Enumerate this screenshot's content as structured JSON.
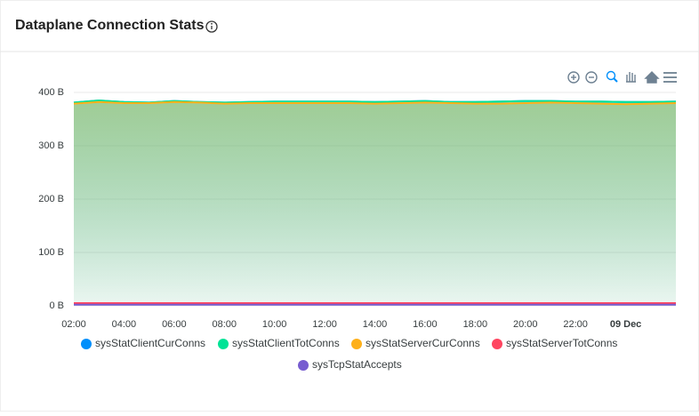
{
  "header": {
    "title": "Dataplane Connection Stats"
  },
  "chart_data": {
    "type": "area",
    "x": [
      2,
      3,
      4,
      5,
      6,
      7,
      8,
      9,
      10,
      11,
      12,
      13,
      14,
      15,
      16,
      17,
      18,
      19,
      20,
      21,
      22,
      23,
      24,
      25,
      26
    ],
    "xlim": [
      2,
      26
    ],
    "xticks": [
      {
        "value": 2,
        "label": "02:00"
      },
      {
        "value": 4,
        "label": "04:00"
      },
      {
        "value": 6,
        "label": "06:00"
      },
      {
        "value": 8,
        "label": "08:00"
      },
      {
        "value": 10,
        "label": "10:00"
      },
      {
        "value": 12,
        "label": "12:00"
      },
      {
        "value": 14,
        "label": "14:00"
      },
      {
        "value": 16,
        "label": "16:00"
      },
      {
        "value": 18,
        "label": "18:00"
      },
      {
        "value": 20,
        "label": "20:00"
      },
      {
        "value": 22,
        "label": "22:00"
      },
      {
        "value": 24,
        "label": "09 Dec"
      }
    ],
    "ylim": [
      0,
      400
    ],
    "yticks": [
      {
        "value": 0,
        "label": "0 B"
      },
      {
        "value": 100,
        "label": "100 B"
      },
      {
        "value": 200,
        "label": "200 B"
      },
      {
        "value": 300,
        "label": "300 B"
      },
      {
        "value": 400,
        "label": "400 B"
      }
    ],
    "grid": true,
    "series": [
      {
        "name": "sysStatClientCurConns",
        "color": "#008ffb",
        "values": [
          381,
          385,
          382,
          381,
          384,
          382,
          381,
          382,
          383,
          383,
          383,
          383,
          382,
          383,
          384,
          382,
          382,
          383,
          384,
          384,
          383,
          383,
          382,
          382,
          383
        ]
      },
      {
        "name": "sysStatClientTotConns",
        "color": "#00e396",
        "values": [
          381,
          385,
          382,
          381,
          384,
          382,
          381,
          382,
          383,
          383,
          383,
          383,
          382,
          383,
          384,
          382,
          382,
          383,
          384,
          384,
          383,
          383,
          382,
          382,
          383
        ]
      },
      {
        "name": "sysStatServerCurConns",
        "color": "#feb019",
        "values": [
          379,
          382,
          380,
          380,
          382,
          381,
          379,
          380,
          380,
          380,
          380,
          380,
          379,
          380,
          381,
          380,
          379,
          379,
          380,
          381,
          380,
          379,
          378,
          379,
          380
        ]
      },
      {
        "name": "sysStatServerTotConns",
        "color": "#ff4560",
        "values": [
          5,
          5,
          5,
          5,
          5,
          5,
          5,
          5,
          5,
          5,
          5,
          5,
          5,
          5,
          5,
          5,
          5,
          5,
          5,
          5,
          5,
          5,
          5,
          5,
          5
        ]
      },
      {
        "name": "sysTcpStatAccepts",
        "color": "#775dd0",
        "values": [
          2,
          2,
          2,
          2,
          2,
          2,
          2,
          2,
          2,
          2,
          2,
          2,
          2,
          2,
          2,
          2,
          2,
          2,
          2,
          2,
          2,
          2,
          2,
          2,
          2
        ]
      }
    ]
  }
}
